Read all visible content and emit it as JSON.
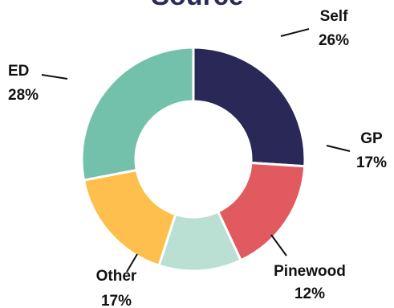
{
  "chart_data": {
    "type": "pie",
    "style": "donut",
    "title": "Source",
    "slices": [
      {
        "label": "Self",
        "value": 26,
        "display": "26%",
        "color": "#2a2857"
      },
      {
        "label": "GP",
        "value": 17,
        "display": "17%",
        "color": "#e05a60"
      },
      {
        "label": "Pinewood",
        "value": 12,
        "display": "12%",
        "color": "#b9e0d3"
      },
      {
        "label": "Other",
        "value": 17,
        "display": "17%",
        "color": "#ffbf4d"
      },
      {
        "label": "ED",
        "value": 28,
        "display": "28%",
        "color": "#73c1aa"
      }
    ]
  }
}
